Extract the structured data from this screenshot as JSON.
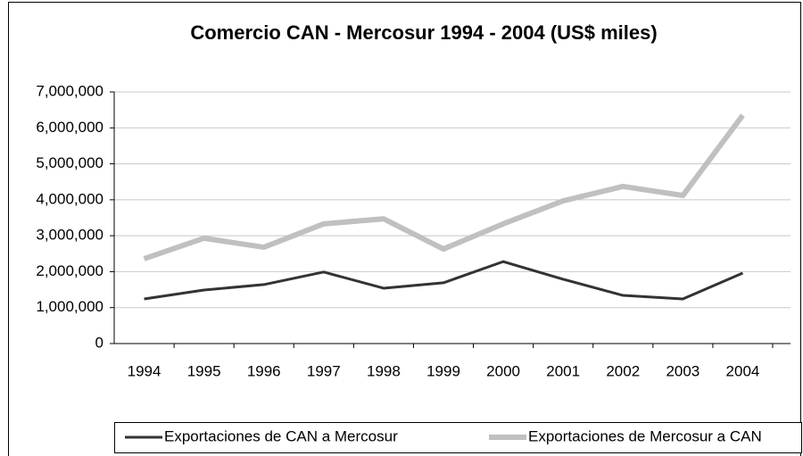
{
  "chart_data": {
    "type": "line",
    "title": "Comercio CAN - Mercosur 1994 - 2004 (US$ miles)",
    "categories": [
      "1994",
      "1995",
      "1996",
      "1997",
      "1998",
      "1999",
      "2000",
      "2001",
      "2002",
      "2003",
      "2004"
    ],
    "series": [
      {
        "name": "Exportaciones de CAN a Mercosur",
        "color": "#333333",
        "values": [
          1240000,
          1490000,
          1640000,
          1990000,
          1540000,
          1690000,
          2280000,
          1790000,
          1340000,
          1240000,
          1960000
        ]
      },
      {
        "name": "Exportaciones de Mercosur a CAN",
        "color": "#c0c0c0",
        "values": [
          2360000,
          2930000,
          2680000,
          3330000,
          3470000,
          2630000,
          3330000,
          3970000,
          4370000,
          4120000,
          6350000
        ]
      }
    ],
    "ylim": [
      0,
      7000000
    ],
    "yticks": [
      0,
      {
        "value": 1000000,
        "label": "1,000,000"
      },
      {
        "value": 2000000,
        "label": "2,000,000"
      },
      {
        "value": 3000000,
        "label": "3,000,000"
      },
      {
        "value": 4000000,
        "label": "4,000,000"
      },
      {
        "value": 5000000,
        "label": "5,000,000"
      },
      {
        "value": 6000000,
        "label": "6,000,000"
      },
      {
        "value": 7000000,
        "label": "7,000,000"
      }
    ],
    "grid": true,
    "legend": "bottom"
  }
}
